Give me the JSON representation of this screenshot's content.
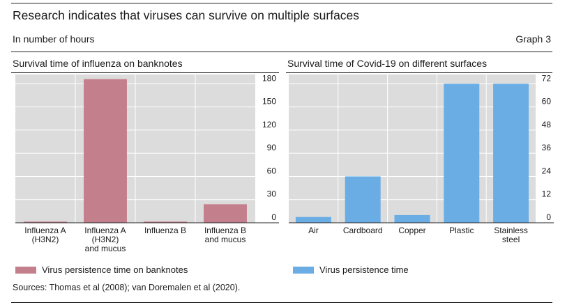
{
  "title": "Research indicates that viruses can survive on multiple surfaces",
  "subtitle": "In number of hours",
  "graph_label": "Graph 3",
  "sources": "Sources: Thomas et al (2008); van Doremalen et al (2020).",
  "colors": {
    "influenza": "#c47f8d",
    "covid": "#6aade4",
    "plot_bg": "#dcdcdc",
    "grid": "#ffffff"
  },
  "chart_data": [
    {
      "type": "bar",
      "title": "Survival time of influenza on banknotes",
      "categories": [
        [
          "Influenza A",
          "(H3N2)"
        ],
        [
          "Influenza A",
          "(H3N2)",
          "and mucus"
        ],
        [
          "Influenza B"
        ],
        [
          "Influenza B",
          "and mucus"
        ]
      ],
      "series": [
        {
          "name": "Virus persistence time on banknotes",
          "values": [
            1.5,
            186,
            1.5,
            24
          ]
        }
      ],
      "ylim": [
        0,
        192
      ],
      "yticks": [
        0,
        30,
        60,
        90,
        120,
        150,
        180
      ],
      "axis_side": "right",
      "grid": true,
      "legend": "bottom-left"
    },
    {
      "type": "bar",
      "title": "Survival time of Covid-19 on different surfaces",
      "categories": [
        [
          "Air"
        ],
        [
          "Cardboard"
        ],
        [
          "Copper"
        ],
        [
          "Plastic"
        ],
        [
          "Stainless",
          "steel"
        ]
      ],
      "series": [
        {
          "name": "Virus persistence time",
          "values": [
            3,
            24,
            4,
            72,
            72
          ]
        }
      ],
      "ylim": [
        0,
        76.8
      ],
      "yticks": [
        0,
        12,
        24,
        36,
        48,
        60,
        72
      ],
      "axis_side": "right",
      "grid": true,
      "legend": "bottom-left"
    }
  ]
}
